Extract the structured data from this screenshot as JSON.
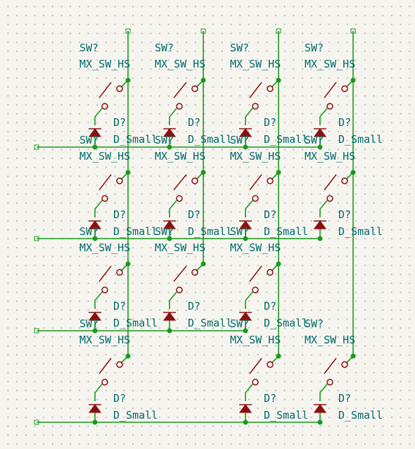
{
  "colors": {
    "wire": "#1a9a1a",
    "symbol": "#8b1010",
    "text": "#006b6b",
    "background": "#f5f4ef"
  },
  "switch_ref": "SW?",
  "switch_value": "MX_SW_HS",
  "diode_ref": "D?",
  "diode_value": "D_Small",
  "rows": [
    {
      "switch_columns": [
        1,
        2,
        3,
        4
      ]
    },
    {
      "switch_columns": [
        1,
        2,
        3,
        4
      ]
    },
    {
      "switch_columns": [
        1,
        2,
        3
      ]
    },
    {
      "switch_columns": [
        1,
        3,
        4
      ]
    }
  ]
}
